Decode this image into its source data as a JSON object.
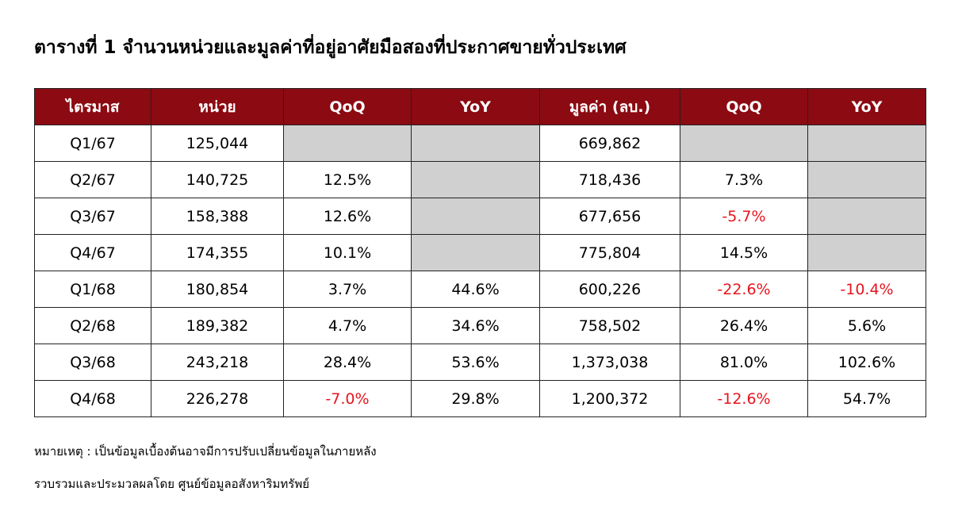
{
  "title": "ตารางที่ 1 จำนวนหน่วยและมูลค่าที่อยู่อาศัยมือสองที่ประกาศขายทั่วประเทศ",
  "table": {
    "headers": [
      "ไตรมาส",
      "หน่วย",
      "QoQ",
      "YoY",
      "มูลค่า (ลบ.)",
      "QoQ",
      "YoY"
    ],
    "rows": [
      [
        "Q1/67",
        "125,044",
        null,
        null,
        "669,862",
        null,
        null
      ],
      [
        "Q2/67",
        "140,725",
        "12.5%",
        null,
        "718,436",
        "7.3%",
        null
      ],
      [
        "Q3/67",
        "158,388",
        "12.6%",
        null,
        "677,656",
        "-5.7%",
        null
      ],
      [
        "Q4/67",
        "174,355",
        "10.1%",
        null,
        "775,804",
        "14.5%",
        null
      ],
      [
        "Q1/68",
        "180,854",
        "3.7%",
        "44.6%",
        "600,226",
        "-22.6%",
        "-10.4%"
      ],
      [
        "Q2/68",
        "189,382",
        "4.7%",
        "34.6%",
        "758,502",
        "26.4%",
        "5.6%"
      ],
      [
        "Q3/68",
        "243,218",
        "28.4%",
        "53.6%",
        "1,373,038",
        "81.0%",
        "102.6%"
      ],
      [
        "Q4/68",
        "226,278",
        "-7.0%",
        "29.8%",
        "1,200,372",
        "-12.6%",
        "54.7%"
      ]
    ]
  },
  "notes": [
    "หมายเหตุ : เป็นข้อมูลเบื้องต้นอาจมีการปรับเปลี่ยนข้อมูลในภายหลัง",
    "รวบรวมและประมวลผลโดย ศูนย์ข้อมูลอสังหาริมทรัพย์"
  ]
}
